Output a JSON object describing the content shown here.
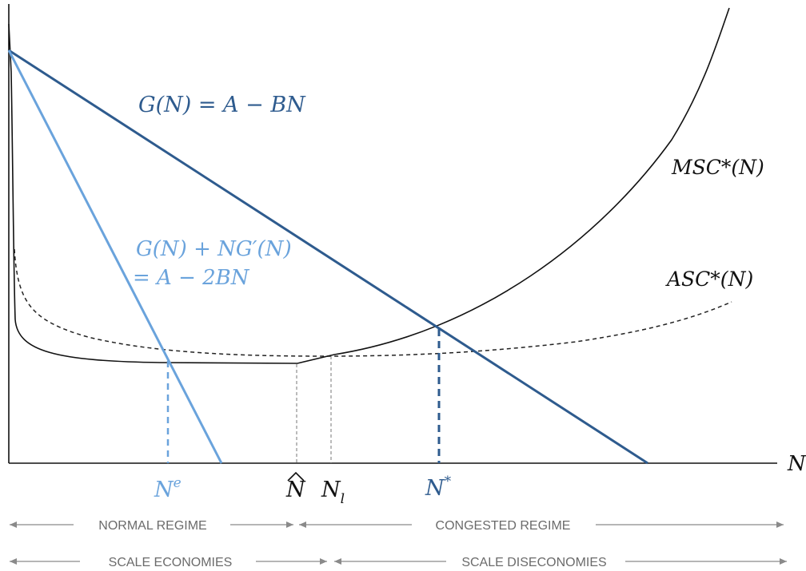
{
  "colors": {
    "dark_blue": "#2e5b8e",
    "light_blue": "#6aa3dc",
    "black": "#111111",
    "gray_text": "#6b6b6b",
    "arrow_gray": "#8a8a8a"
  },
  "labels": {
    "demand": "G(N) = A − BN",
    "mr_line1": "G(N) + NG′(N)",
    "mr_line2": "= A − 2BN",
    "msc": "MSC*(N)",
    "asc": "ASC*(N)",
    "x_axis": "N"
  },
  "ticks": {
    "ne": {
      "base": "N",
      "sup": "e"
    },
    "nhat": {
      "base": "N"
    },
    "nl": {
      "base": "N",
      "sub": "l"
    },
    "nstar": {
      "base": "N",
      "sup": "*"
    }
  },
  "regimes": {
    "row1": [
      "NORMAL REGIME",
      "CONGESTED REGIME"
    ],
    "row2": [
      "SCALE ECONOMIES",
      "SCALE DISECONOMIES"
    ]
  }
}
